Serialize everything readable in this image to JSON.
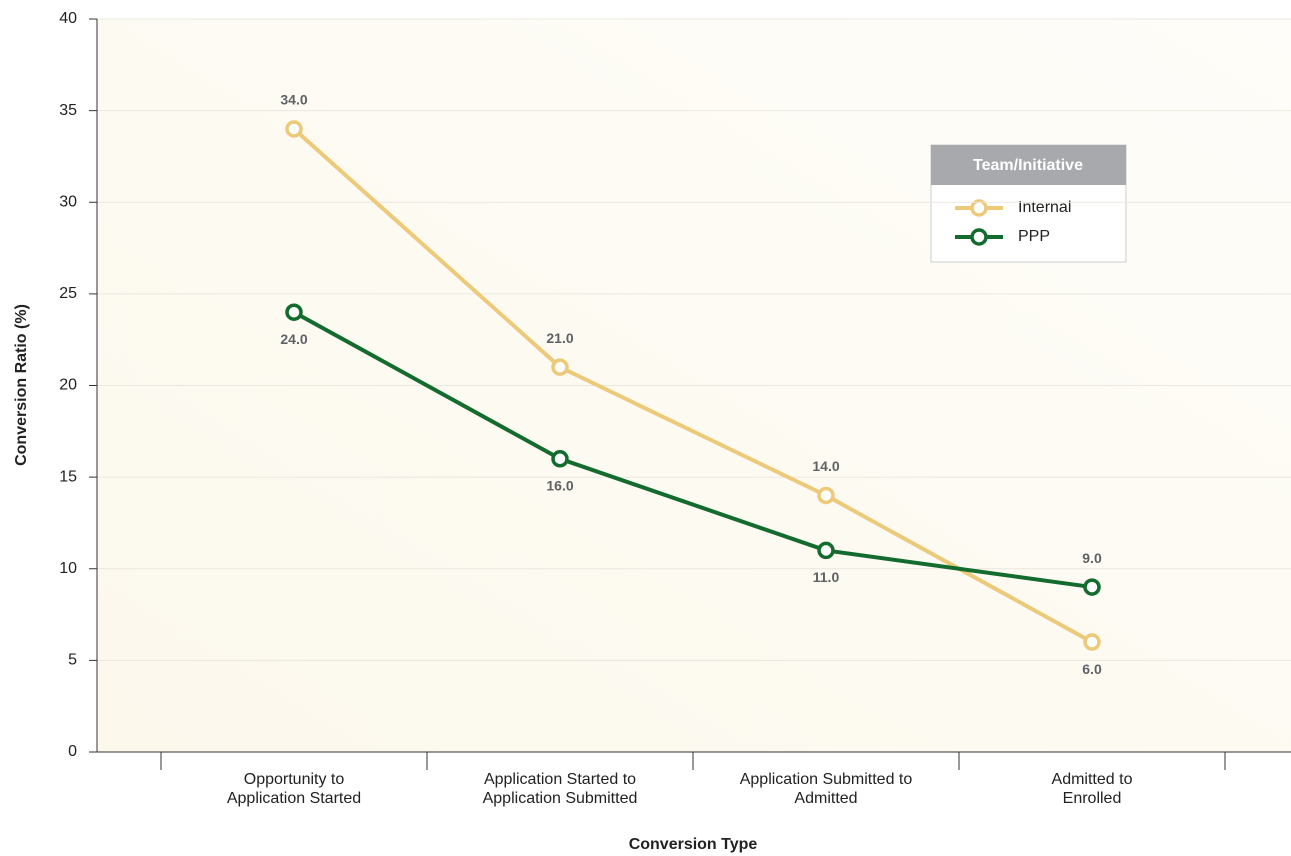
{
  "chart_data": {
    "type": "line",
    "categories": [
      "Opportunity to\nApplication Started",
      "Application Started to\nApplication Submitted",
      "Application Submitted to\nAdmitted",
      "Admitted to\nEnrolled"
    ],
    "series": [
      {
        "name": "Internal",
        "color": "#edc97a",
        "values": [
          34.0,
          21.0,
          14.0,
          6.0
        ],
        "value_labels": [
          "34.0",
          "21.0",
          "14.0",
          "6.0"
        ]
      },
      {
        "name": "PPP",
        "color": "#146b2e",
        "values": [
          24.0,
          16.0,
          11.0,
          9.0
        ],
        "value_labels": [
          "24.0",
          "16.0",
          "11.0",
          "9.0"
        ]
      }
    ],
    "ylim": [
      0,
      40
    ],
    "yticks": [
      0,
      5,
      10,
      15,
      20,
      25,
      30,
      35,
      40
    ],
    "grid": true,
    "ylabel": "Conversion Ratio (%)",
    "xlabel": "Conversion Type",
    "legend_title": "Team/Initiative",
    "legend": "upper right"
  }
}
